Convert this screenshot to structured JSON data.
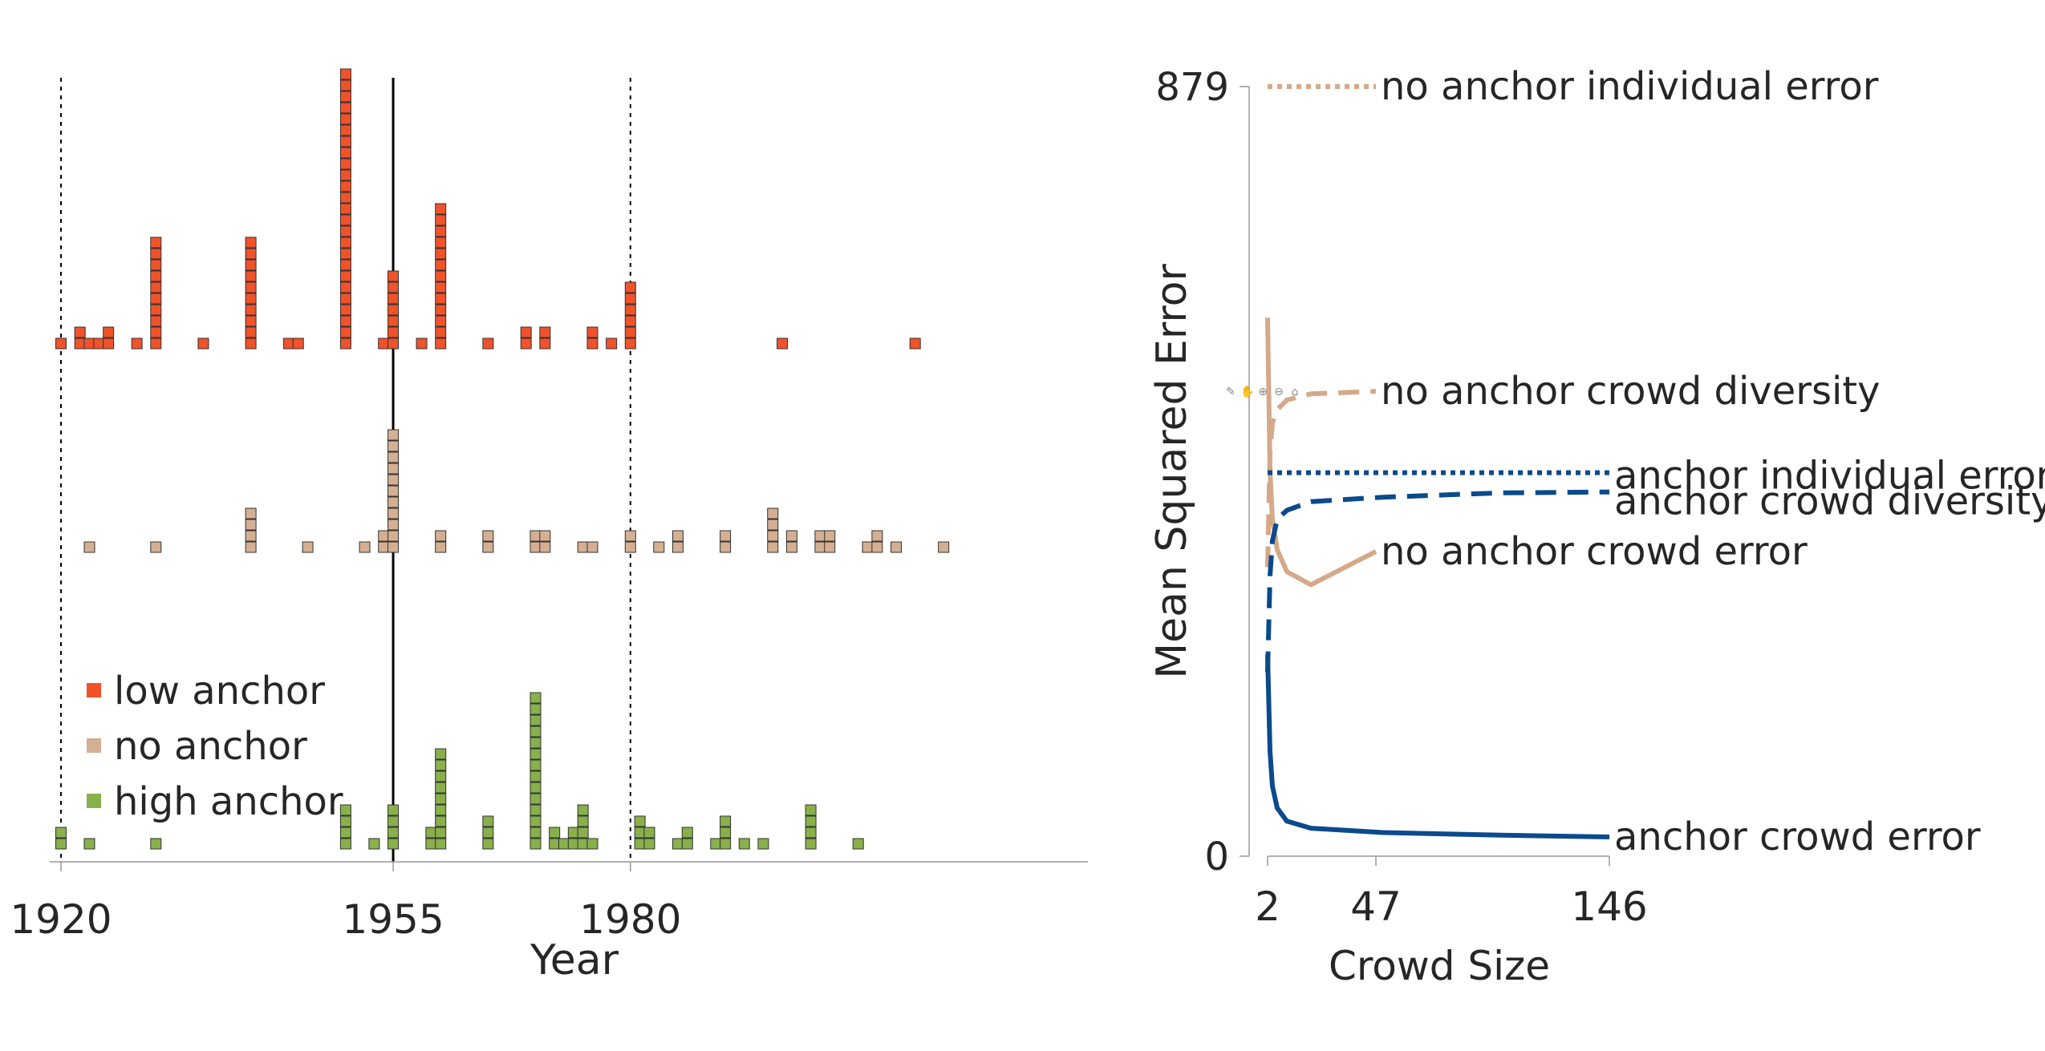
{
  "chart_data": [
    {
      "type": "scatter",
      "title": "",
      "xlabel": "Year",
      "ylabel": "",
      "x_ticks": [
        1920,
        1955,
        1980
      ],
      "xlim": [
        1920,
        2013
      ],
      "reference_lines": [
        {
          "year": 1920,
          "style": "dotted"
        },
        {
          "year": 1955,
          "style": "solid"
        },
        {
          "year": 1980,
          "style": "dotted"
        }
      ],
      "legend": {
        "position": "bottom-left",
        "entries": [
          "low anchor",
          "no anchor",
          "high anchor"
        ]
      },
      "series": [
        {
          "name": "low anchor",
          "color": "#f0522a",
          "points": [
            [
              1920,
              1
            ],
            [
              1922,
              2
            ],
            [
              1923,
              1
            ],
            [
              1924,
              1
            ],
            [
              1925,
              2
            ],
            [
              1928,
              1
            ],
            [
              1930,
              10
            ],
            [
              1935,
              1
            ],
            [
              1940,
              10
            ],
            [
              1944,
              1
            ],
            [
              1945,
              1
            ],
            [
              1950,
              25
            ],
            [
              1954,
              1
            ],
            [
              1955,
              7
            ],
            [
              1958,
              1
            ],
            [
              1960,
              13
            ],
            [
              1965,
              1
            ],
            [
              1969,
              2
            ],
            [
              1971,
              2
            ],
            [
              1976,
              2
            ],
            [
              1978,
              1
            ],
            [
              1980,
              6
            ],
            [
              1996,
              1
            ],
            [
              2010,
              1
            ]
          ]
        },
        {
          "name": "no anchor",
          "color": "#d4af92",
          "points": [
            [
              1923,
              1
            ],
            [
              1930,
              1
            ],
            [
              1940,
              4
            ],
            [
              1946,
              1
            ],
            [
              1952,
              1
            ],
            [
              1954,
              2
            ],
            [
              1955,
              11
            ],
            [
              1960,
              2
            ],
            [
              1965,
              2
            ],
            [
              1970,
              2
            ],
            [
              1971,
              2
            ],
            [
              1975,
              1
            ],
            [
              1976,
              1
            ],
            [
              1980,
              2
            ],
            [
              1983,
              1
            ],
            [
              1985,
              2
            ],
            [
              1990,
              2
            ],
            [
              1995,
              4
            ],
            [
              1997,
              2
            ],
            [
              2000,
              2
            ],
            [
              2001,
              2
            ],
            [
              2005,
              1
            ],
            [
              2006,
              2
            ],
            [
              2008,
              1
            ],
            [
              2013,
              1
            ]
          ]
        },
        {
          "name": "high anchor",
          "color": "#88b04b",
          "points": [
            [
              1920,
              2
            ],
            [
              1923,
              1
            ],
            [
              1930,
              1
            ],
            [
              1950,
              4
            ],
            [
              1953,
              1
            ],
            [
              1955,
              4
            ],
            [
              1959,
              2
            ],
            [
              1960,
              9
            ],
            [
              1965,
              3
            ],
            [
              1970,
              14
            ],
            [
              1972,
              2
            ],
            [
              1973,
              1
            ],
            [
              1974,
              2
            ],
            [
              1975,
              4
            ],
            [
              1976,
              1
            ],
            [
              1981,
              3
            ],
            [
              1982,
              2
            ],
            [
              1985,
              1
            ],
            [
              1986,
              2
            ],
            [
              1989,
              1
            ],
            [
              1990,
              3
            ],
            [
              1992,
              1
            ],
            [
              1994,
              1
            ],
            [
              1999,
              4
            ],
            [
              2004,
              1
            ]
          ]
        }
      ]
    },
    {
      "type": "line",
      "title": "",
      "xlabel": "Crowd Size",
      "ylabel": "Mean Squared Error",
      "x_ticks": [
        2,
        47,
        146
      ],
      "y_ticks": [
        0,
        879
      ],
      "xlim": [
        2,
        146
      ],
      "ylim": [
        0,
        879
      ],
      "series": [
        {
          "name": "no anchor individual error",
          "color": "#d4a98a",
          "style": "dotted",
          "x": [
            2,
            47
          ],
          "y": [
            879,
            879
          ]
        },
        {
          "name": "no anchor crowd diversity",
          "color": "#d4a98a",
          "style": "dashed",
          "x": [
            2,
            3,
            4,
            6,
            10,
            20,
            47
          ],
          "y": [
            330,
            460,
            495,
            510,
            521,
            528,
            531
          ]
        },
        {
          "name": "no anchor crowd error",
          "color": "#d4a98a",
          "style": "solid",
          "x": [
            2,
            3,
            4,
            6,
            10,
            20,
            47
          ],
          "y": [
            615,
            440,
            385,
            350,
            325,
            310,
            348
          ]
        },
        {
          "name": "anchor individual error",
          "color": "#0b4a8c",
          "style": "dotted",
          "x": [
            2,
            146
          ],
          "y": [
            438,
            438
          ]
        },
        {
          "name": "anchor crowd diversity",
          "color": "#0b4a8c",
          "style": "dashed",
          "x": [
            2,
            3,
            4,
            6,
            10,
            20,
            50,
            100,
            146
          ],
          "y": [
            210,
            320,
            360,
            385,
            395,
            405,
            410,
            415,
            416
          ]
        },
        {
          "name": "anchor crowd error",
          "color": "#0b4a8c",
          "style": "solid",
          "x": [
            2,
            3,
            4,
            6,
            10,
            20,
            50,
            100,
            146
          ],
          "y": [
            230,
            120,
            80,
            55,
            40,
            32,
            27,
            24,
            22
          ]
        }
      ]
    }
  ]
}
